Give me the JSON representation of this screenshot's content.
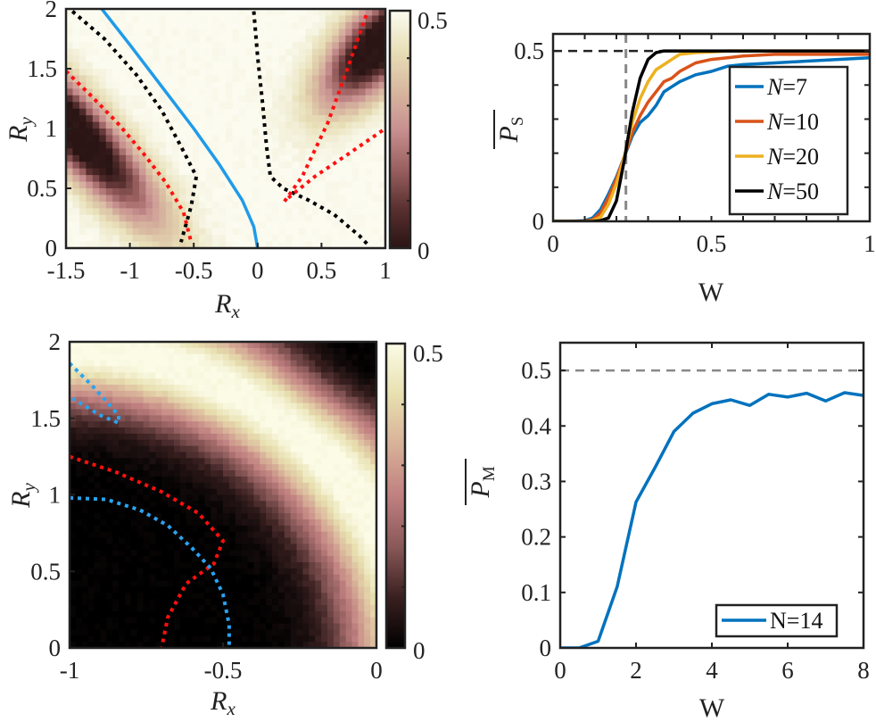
{
  "chart_data": [
    {
      "id": "a",
      "type": "heatmap",
      "title": "",
      "xlabel": "R_x",
      "ylabel": "R_y",
      "xlim": [
        -1.5,
        1
      ],
      "ylim": [
        0,
        2
      ],
      "xticks": [
        -1.5,
        -1,
        -0.5,
        0,
        0.5,
        1
      ],
      "xtick_labels": [
        "-1.5",
        "-1",
        "-0.5",
        "0",
        "0.5",
        "1"
      ],
      "yticks": [
        0,
        0.5,
        1,
        1.5,
        2
      ],
      "ytick_labels": [
        "0",
        "0.5",
        "1",
        "1.5",
        "2"
      ],
      "colorbar": {
        "range": [
          0,
          0.5
        ],
        "tick_labels": [
          "0",
          "0.5"
        ],
        "colormap": [
          "#2a1414",
          "#5a3030",
          "#9a6060",
          "#c89090",
          "#d8b8a0",
          "#e8e0b8",
          "#fbfbf0"
        ]
      },
      "field_description": "Two dark lobes (value ~0) near (-1.4,1) and (0.9,1.7); bright (~0.5) elsewhere",
      "lines": [
        {
          "name": "blue-solid",
          "color": "#1f9bea",
          "style": "solid",
          "points": [
            [
              -1.22,
              2.0
            ],
            [
              -1.0,
              1.7
            ],
            [
              -0.75,
              1.35
            ],
            [
              -0.5,
              1.0
            ],
            [
              -0.3,
              0.7
            ],
            [
              -0.12,
              0.4
            ],
            [
              -0.03,
              0.18
            ],
            [
              0.0,
              0.0
            ]
          ]
        },
        {
          "name": "black-dotted-left",
          "color": "#000000",
          "style": "dotted",
          "points": [
            [
              -1.45,
              1.98
            ],
            [
              -1.2,
              1.75
            ],
            [
              -0.95,
              1.45
            ],
            [
              -0.75,
              1.15
            ],
            [
              -0.6,
              0.85
            ],
            [
              -0.48,
              0.6
            ],
            [
              -0.52,
              0.35
            ],
            [
              -0.6,
              0.05
            ]
          ]
        },
        {
          "name": "red-dotted-left",
          "color": "#ff1010",
          "style": "dotted",
          "points": [
            [
              -1.5,
              1.48
            ],
            [
              -1.3,
              1.27
            ],
            [
              -1.1,
              1.05
            ],
            [
              -0.9,
              0.8
            ],
            [
              -0.72,
              0.55
            ],
            [
              -0.58,
              0.3
            ],
            [
              -0.52,
              0.05
            ]
          ]
        },
        {
          "name": "black-dotted-right",
          "color": "#000000",
          "style": "dotted",
          "points": [
            [
              -0.03,
              1.98
            ],
            [
              0.0,
              1.6
            ],
            [
              0.04,
              1.2
            ],
            [
              0.07,
              0.85
            ],
            [
              0.1,
              0.6
            ],
            [
              0.2,
              0.5
            ],
            [
              0.4,
              0.4
            ],
            [
              0.6,
              0.28
            ],
            [
              0.8,
              0.1
            ],
            [
              0.87,
              0.02
            ]
          ]
        },
        {
          "name": "red-dotted-right-upper",
          "color": "#ff1010",
          "style": "dotted",
          "points": [
            [
              0.21,
              0.39
            ],
            [
              0.35,
              0.6
            ],
            [
              0.55,
              1.05
            ],
            [
              0.72,
              1.55
            ],
            [
              0.86,
              1.98
            ]
          ]
        },
        {
          "name": "red-dotted-right-lower",
          "color": "#ff1010",
          "style": "dotted",
          "points": [
            [
              0.24,
              0.42
            ],
            [
              0.45,
              0.6
            ],
            [
              0.7,
              0.78
            ],
            [
              1.0,
              1.0
            ]
          ]
        }
      ]
    },
    {
      "id": "b",
      "type": "line",
      "title": "",
      "xlabel": "W",
      "ylabel": "P_S (overlined)",
      "xlim": [
        0,
        1
      ],
      "ylim": [
        0,
        0.55
      ],
      "xticks": [
        0,
        0.5,
        1
      ],
      "xtick_labels": [
        "0",
        "0.5",
        "1"
      ],
      "yticks": [
        0,
        0.5
      ],
      "ytick_labels": [
        "0",
        "0.5"
      ],
      "reference_lines": [
        {
          "orientation": "horizontal",
          "value": 0.5,
          "style": "dashed",
          "color": "#222222"
        },
        {
          "orientation": "vertical",
          "value": 0.23,
          "style": "dashed",
          "color": "#888888"
        }
      ],
      "legend": {
        "placement": "center-right",
        "entries": [
          "N=7",
          "N=10",
          "N=20",
          "N=50"
        ]
      },
      "x": [
        0,
        0.05,
        0.1,
        0.125,
        0.15,
        0.175,
        0.2,
        0.225,
        0.25,
        0.275,
        0.3,
        0.325,
        0.35,
        0.375,
        0.4,
        0.45,
        0.5,
        0.55,
        0.6,
        0.7,
        0.8,
        0.9,
        1.0
      ],
      "series": [
        {
          "name": "N=7",
          "color": "#0072bd",
          "values": [
            0,
            0,
            0.002,
            0.01,
            0.035,
            0.08,
            0.13,
            0.19,
            0.25,
            0.29,
            0.31,
            0.34,
            0.38,
            0.395,
            0.41,
            0.43,
            0.44,
            0.455,
            0.46,
            0.465,
            0.47,
            0.475,
            0.48
          ]
        },
        {
          "name": "N=10",
          "color": "#d95319",
          "values": [
            0,
            0,
            0.001,
            0.005,
            0.025,
            0.07,
            0.125,
            0.19,
            0.26,
            0.31,
            0.35,
            0.38,
            0.41,
            0.42,
            0.44,
            0.465,
            0.475,
            0.48,
            0.485,
            0.49,
            0.49,
            0.49,
            0.49
          ]
        },
        {
          "name": "N=20",
          "color": "#edb120",
          "values": [
            0,
            0,
            0,
            0.002,
            0.012,
            0.05,
            0.11,
            0.19,
            0.29,
            0.36,
            0.41,
            0.445,
            0.46,
            0.475,
            0.49,
            0.495,
            0.497,
            0.5,
            0.5,
            0.5,
            0.5,
            0.5,
            0.5
          ]
        },
        {
          "name": "N=50",
          "color": "#000000",
          "values": [
            0,
            0,
            0,
            0,
            0.002,
            0.01,
            0.06,
            0.18,
            0.32,
            0.42,
            0.475,
            0.495,
            0.5,
            0.5,
            0.5,
            0.5,
            0.5,
            0.5,
            0.5,
            0.5,
            0.5,
            0.5,
            0.5
          ]
        }
      ]
    },
    {
      "id": "c",
      "type": "heatmap",
      "title": "",
      "xlabel": "R_x",
      "ylabel": "R_y",
      "xlim": [
        -1,
        0
      ],
      "ylim": [
        0,
        2
      ],
      "xticks": [
        -1,
        -0.5,
        0
      ],
      "xtick_labels": [
        "-1",
        "-0.5",
        "0"
      ],
      "yticks": [
        0,
        0.5,
        1,
        1.5,
        2
      ],
      "ytick_labels": [
        "0",
        "0.5",
        "1",
        "1.5",
        "2"
      ],
      "colorbar": {
        "range": [
          0,
          0.5
        ],
        "tick_labels": [
          "0",
          "0.5"
        ],
        "colormap": [
          "#000000",
          "#3a2020",
          "#8a5858",
          "#c08080",
          "#d8b098",
          "#e8e0b0",
          "#fbfbe6"
        ]
      },
      "field_description": "Bright diagonal ridge (~0.5) from (-1,2) to (0,0.1); dark (~0) near (-1,0) and (0,2)",
      "lines": [
        {
          "name": "blue-dotted-upper",
          "color": "#2aa3f0",
          "style": "dotted",
          "points": [
            [
              -1.0,
              1.86
            ],
            [
              -0.92,
              1.7
            ],
            [
              -0.84,
              1.52
            ],
            [
              -0.84,
              1.47
            ],
            [
              -0.9,
              1.52
            ],
            [
              -0.99,
              1.63
            ]
          ]
        },
        {
          "name": "red-dotted",
          "color": "#ff1010",
          "style": "dotted",
          "points": [
            [
              -1.0,
              1.25
            ],
            [
              -0.85,
              1.15
            ],
            [
              -0.7,
              1.02
            ],
            [
              -0.58,
              0.88
            ],
            [
              -0.5,
              0.7
            ],
            [
              -0.53,
              0.55
            ],
            [
              -0.62,
              0.42
            ],
            [
              -0.68,
              0.2
            ],
            [
              -0.7,
              0.0
            ]
          ]
        },
        {
          "name": "blue-dotted-lower",
          "color": "#2aa3f0",
          "style": "dotted",
          "points": [
            [
              -1.0,
              0.98
            ],
            [
              -0.88,
              0.97
            ],
            [
              -0.77,
              0.9
            ],
            [
              -0.68,
              0.8
            ],
            [
              -0.6,
              0.65
            ],
            [
              -0.54,
              0.52
            ],
            [
              -0.5,
              0.35
            ],
            [
              -0.48,
              0.15
            ],
            [
              -0.48,
              0.0
            ]
          ]
        }
      ]
    },
    {
      "id": "d",
      "type": "line",
      "title": "",
      "xlabel": "W",
      "ylabel": "P_M (overlined)",
      "xlim": [
        0,
        8
      ],
      "ylim": [
        0,
        0.55
      ],
      "xticks": [
        0,
        2,
        4,
        6,
        8
      ],
      "xtick_labels": [
        "0",
        "2",
        "4",
        "6",
        "8"
      ],
      "yticks": [
        0,
        0.1,
        0.2,
        0.3,
        0.4,
        0.5
      ],
      "ytick_labels": [
        "0",
        "0.1",
        "0.2",
        "0.3",
        "0.4",
        "0.5"
      ],
      "reference_lines": [
        {
          "orientation": "horizontal",
          "value": 0.5,
          "style": "dashed",
          "color": "#888888"
        }
      ],
      "legend": {
        "placement": "bottom-right",
        "entries": [
          "N=14"
        ]
      },
      "x": [
        0,
        0.5,
        1,
        1.5,
        2,
        2.5,
        3,
        3.5,
        4,
        4.5,
        5,
        5.5,
        6,
        6.5,
        7,
        7.5,
        8
      ],
      "series": [
        {
          "name": "N=14",
          "color": "#0072bd",
          "values": [
            0,
            0,
            0.012,
            0.11,
            0.263,
            0.325,
            0.39,
            0.423,
            0.44,
            0.447,
            0.437,
            0.457,
            0.452,
            0.459,
            0.445,
            0.46,
            0.455
          ]
        }
      ]
    }
  ]
}
